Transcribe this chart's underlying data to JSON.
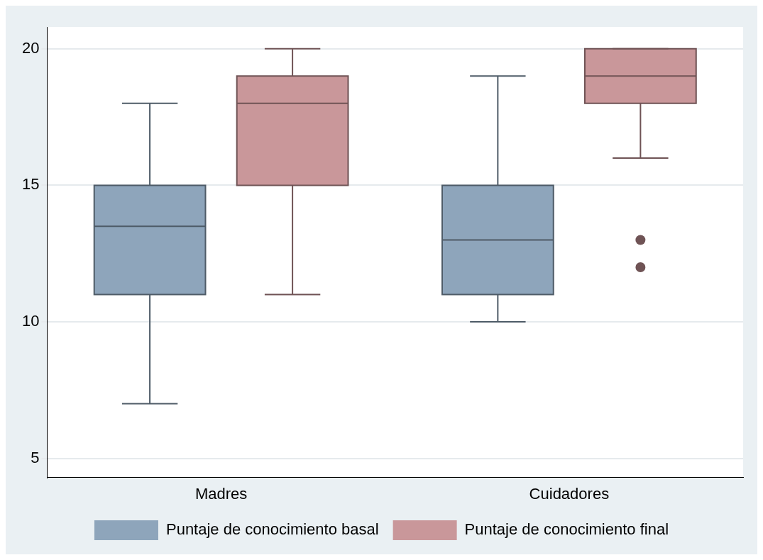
{
  "chart_data": {
    "type": "box",
    "categories": [
      "Madres",
      "Cuidadores"
    ],
    "series": [
      {
        "name": "Puntaje de conocimiento basal",
        "color": "#8ea5bb",
        "boxes": [
          {
            "low": 7,
            "q1": 11,
            "median": 13.5,
            "q3": 15,
            "high": 18
          },
          {
            "low": 10,
            "q1": 11,
            "median": 13,
            "q3": 15,
            "high": 19
          }
        ]
      },
      {
        "name": "Puntaje de conocimiento final",
        "color": "#c9979a",
        "boxes": [
          {
            "low": 11,
            "q1": 15,
            "median": 18,
            "q3": 19,
            "high": 20
          },
          {
            "low": 16,
            "q1": 18,
            "median": 19,
            "q3": 20,
            "high": 20,
            "outliers": [
              12,
              13
            ]
          }
        ]
      }
    ],
    "ylim": [
      4.3,
      20.8
    ],
    "yticks": [
      5,
      10,
      15,
      20
    ],
    "grid": "y",
    "legend": "bottom"
  }
}
